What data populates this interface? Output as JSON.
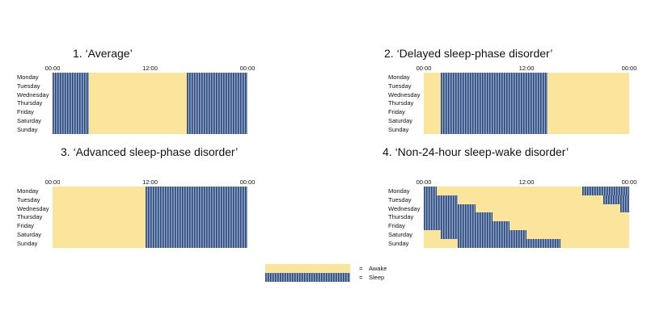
{
  "colors": {
    "awake": "#fbe59c",
    "sleep_stripe_dark": "#2a4577",
    "sleep_stripe_light": "#8fa6c8"
  },
  "time_labels": [
    "00:00",
    "12:00",
    "00:00"
  ],
  "days": [
    "Monday",
    "Tuesday",
    "Wednesday",
    "Thursday",
    "Friday",
    "Saturday",
    "Sunday"
  ],
  "panels": [
    {
      "title": "1. ‘Average’",
      "sleep": [
        {
          "start": 0,
          "end": 4.5
        },
        {
          "start": 0,
          "end": 4.5
        },
        {
          "start": 0,
          "end": 4.5
        },
        {
          "start": 0,
          "end": 4.5
        },
        {
          "start": 0,
          "end": 4.5
        },
        {
          "start": 0,
          "end": 4.5
        },
        {
          "start": 0,
          "end": 4.5
        },
        {
          "start": 16.5,
          "end": 24
        },
        {
          "start": 16.5,
          "end": 24
        },
        {
          "start": 16.5,
          "end": 24
        },
        {
          "start": 16.5,
          "end": 24
        },
        {
          "start": 16.5,
          "end": 24
        },
        {
          "start": 16.5,
          "end": 24
        },
        {
          "start": 16.5,
          "end": 24
        }
      ]
    },
    {
      "title": "2. ‘Delayed sleep-phase disorder’",
      "sleep": [
        {
          "start": 2,
          "end": 14.5
        }
      ]
    },
    {
      "title": "3. ‘Advanced sleep-phase disorder’",
      "sleep": [
        {
          "start": 11.5,
          "end": 24
        }
      ]
    },
    {
      "title": "4. ‘Non-24-hour sleep-wake disorder’",
      "rows": [
        [
          [
            0,
            1.5
          ],
          [
            18.5,
            24
          ]
        ],
        [
          [
            0,
            4
          ],
          [
            21,
            24
          ]
        ],
        [
          [
            0,
            6
          ],
          [
            23,
            24
          ]
        ],
        [
          [
            0,
            8
          ]
        ],
        [
          [
            0,
            10
          ]
        ],
        [
          [
            2,
            12
          ]
        ],
        [
          [
            4,
            16
          ]
        ]
      ]
    }
  ],
  "legend": {
    "awake_label": "Awake",
    "sleep_label": "Sleep",
    "equals": "="
  }
}
